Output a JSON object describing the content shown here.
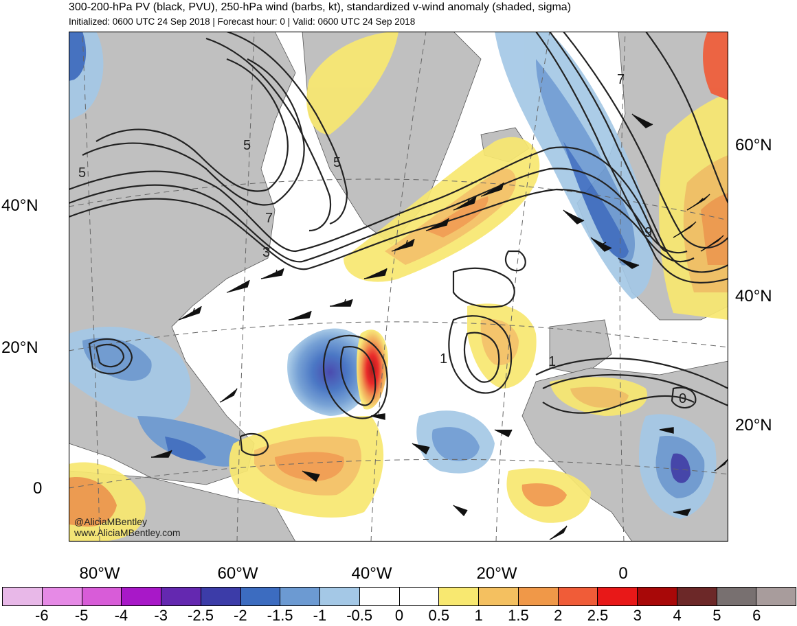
{
  "header": {
    "title": "300-200-hPa PV (black, PVU), 250-hPa wind (barbs, kt), standardized v-wind anomaly (shaded, sigma)",
    "subtitle": "Initialized: 0600 UTC 24 Sep 2018 | Forecast hour: 0 | Valid: 0600 UTC 24 Sep 2018"
  },
  "map": {
    "left_lat_labels": [
      "40°N",
      "20°N",
      "0"
    ],
    "right_lat_labels": [
      "60°N",
      "40°N",
      "20°N"
    ],
    "lon_labels": [
      "80°W",
      "60°W",
      "40°W",
      "20°W",
      "0"
    ],
    "contour_labels": [
      "5",
      "5",
      "5",
      "7",
      "3",
      "7",
      "9",
      "1",
      "1",
      "0"
    ],
    "colors": {
      "land": "#c0c0c0",
      "ocean": "#ffffff",
      "coast": "#555555",
      "pv_contour": "#222222"
    }
  },
  "credit": {
    "handle": "@AliciaMBentley",
    "site": "www.AliciaMBentley.com"
  },
  "colorbar": {
    "labels": [
      "-6",
      "-5",
      "-4",
      "-3",
      "-2.5",
      "-2",
      "-1.5",
      "-1",
      "-0.5",
      "0",
      "0.5",
      "1",
      "1.5",
      "2",
      "2.5",
      "3",
      "4",
      "5",
      "6"
    ],
    "colors": [
      "#e8b8e8",
      "#e68ae6",
      "#d85cd8",
      "#a818c8",
      "#6428b0",
      "#3c3ca8",
      "#3c6cc0",
      "#6c9ad2",
      "#a4c8e6",
      "#ffffff",
      "#ffffff",
      "#f8e870",
      "#f4c060",
      "#f09848",
      "#f05c38",
      "#e81818",
      "#a80808",
      "#6c2828",
      "#787070",
      "#a89c9c"
    ]
  }
}
